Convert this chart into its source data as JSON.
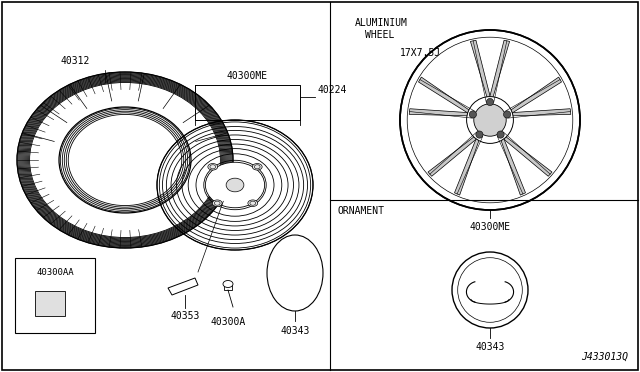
{
  "bg_color": "#ffffff",
  "diagram_id": "J433013Q",
  "section_alum": {
    "title_line1": "ALUMINIUM",
    "title_line2": "WHEEL",
    "size": "17X7.5J"
  },
  "section_ornament": {
    "title": "ORNAMENT"
  },
  "labels": {
    "tire": "40312",
    "wheel_assy": "40300ME",
    "hub_nut": "40224",
    "wheel_weight": "40353",
    "valve": "40300A",
    "cap": "40343",
    "steel_wheel": "40300AA",
    "alum_wheel_label": "40300ME",
    "ornament_label": "40343"
  }
}
